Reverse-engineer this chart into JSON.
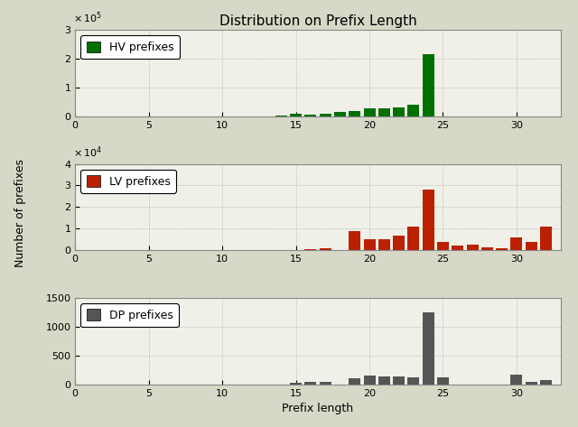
{
  "title": "Distribution on Prefix Length",
  "xlabel": "Prefix length",
  "ylabel": "Number of prefixes",
  "xlim": [
    0,
    33
  ],
  "xticks": [
    0,
    5,
    10,
    15,
    20,
    25,
    30
  ],
  "hv_color": "#007000",
  "hv_label": "HV prefixes",
  "hv_data": {
    "14": 2000,
    "15": 8000,
    "16": 7000,
    "17": 8000,
    "18": 15000,
    "19": 17000,
    "20": 27000,
    "21": 27000,
    "22": 30000,
    "23": 40000,
    "24": 215000
  },
  "hv_ylim": [
    0,
    300000
  ],
  "hv_yticks": [
    0,
    100000,
    200000,
    300000
  ],
  "lv_color": "#bb2000",
  "lv_label": "LV prefixes",
  "lv_data": {
    "16": 500,
    "17": 1000,
    "19": 9000,
    "20": 5000,
    "21": 5000,
    "22": 7000,
    "23": 11000,
    "24": 28000,
    "25": 4000,
    "26": 2000,
    "27": 2500,
    "28": 1500,
    "29": 1000,
    "30": 6000,
    "31": 4000,
    "32": 11000
  },
  "lv_ylim": [
    0,
    40000
  ],
  "lv_yticks": [
    0,
    10000,
    20000,
    30000,
    40000
  ],
  "dp_color": "#555555",
  "dp_label": "DP prefixes",
  "dp_data": {
    "15": 30,
    "16": 50,
    "17": 50,
    "19": 100,
    "20": 150,
    "21": 130,
    "22": 130,
    "23": 120,
    "24": 1250,
    "25": 120,
    "30": 160,
    "31": 50,
    "32": 70
  },
  "dp_ylim": [
    0,
    1500
  ],
  "dp_yticks": [
    0,
    500,
    1000,
    1500
  ],
  "bg_color": "#f0f0e8",
  "fig_bg": "#d8d8c8"
}
